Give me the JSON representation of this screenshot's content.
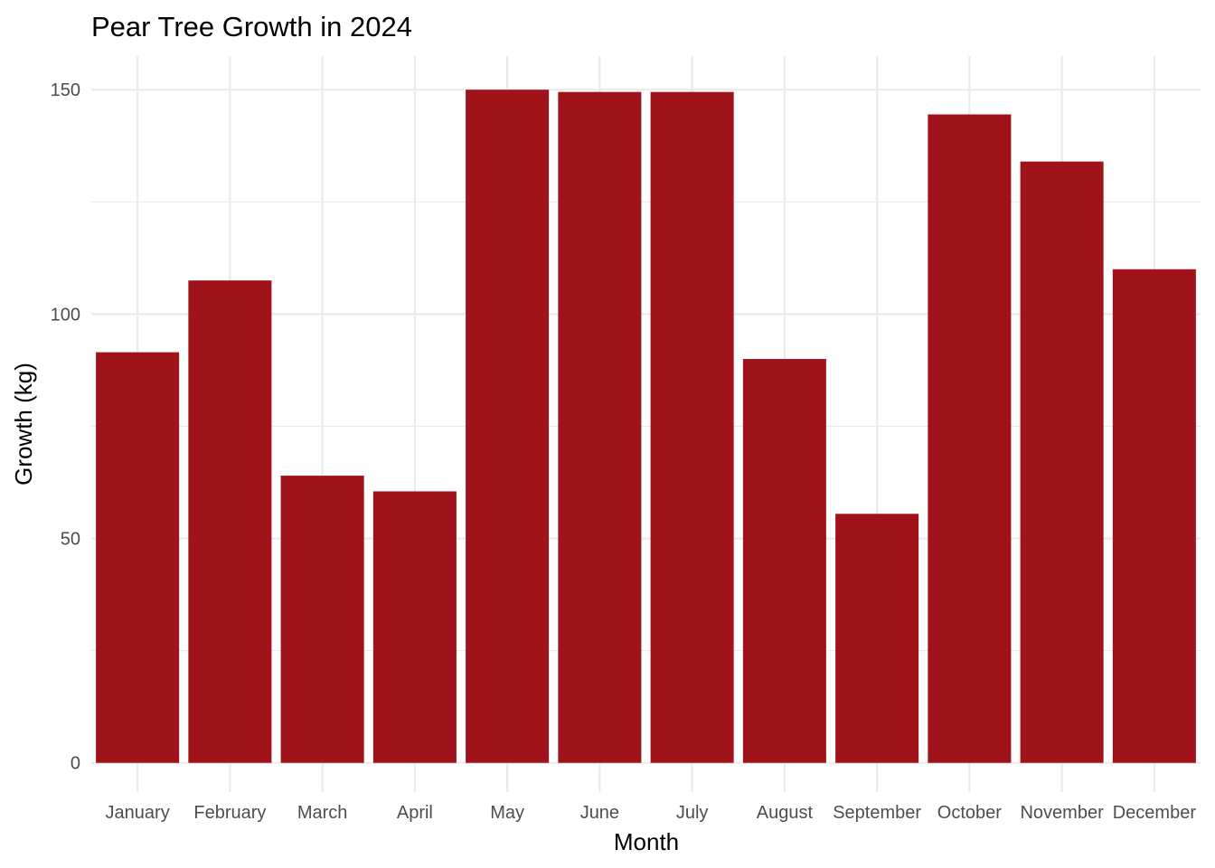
{
  "chart_data": {
    "type": "bar",
    "title": "Pear Tree Growth in 2024",
    "xlabel": "Month",
    "ylabel": "Growth (kg)",
    "categories": [
      "January",
      "February",
      "March",
      "April",
      "May",
      "June",
      "July",
      "August",
      "September",
      "October",
      "November",
      "December"
    ],
    "values": [
      91.5,
      107.5,
      64,
      60.5,
      150,
      149.5,
      149.5,
      90,
      55.5,
      144.5,
      134,
      110
    ],
    "ylim": [
      -6.5,
      157.5
    ],
    "yticks": [
      0,
      50,
      100,
      150
    ],
    "ytick_labels": [
      "0",
      "50",
      "100",
      "150"
    ],
    "yminor": [
      25,
      75,
      125
    ],
    "grid": true,
    "legend": "none",
    "bar_color": "#a0131b",
    "grid_color": "#ebebeb"
  }
}
